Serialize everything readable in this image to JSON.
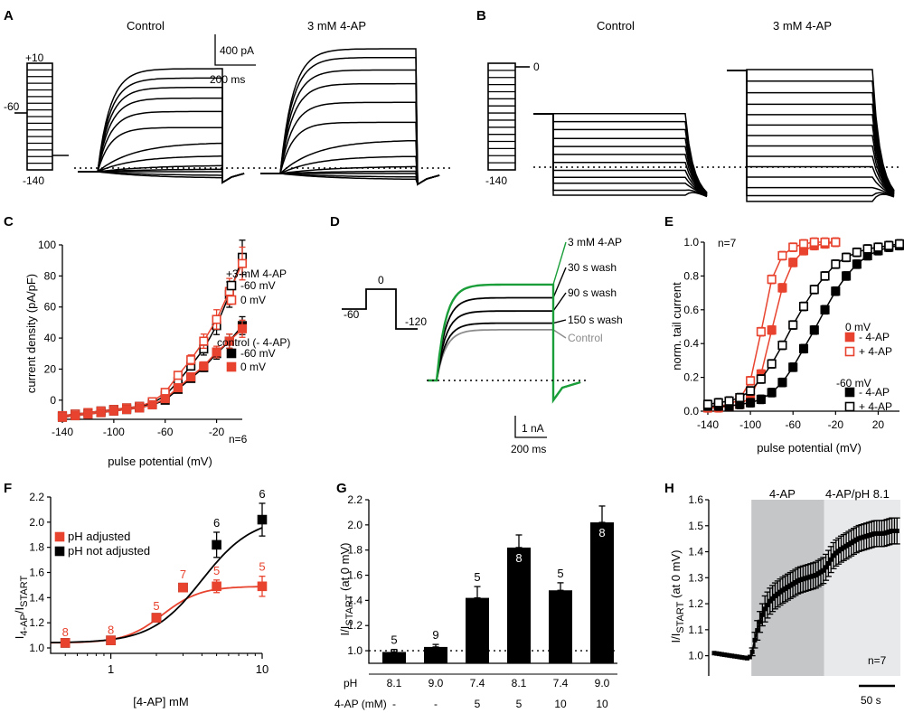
{
  "colors": {
    "black": "#000000",
    "red": "#e8432e",
    "green": "#1a9e3a",
    "gray": "#8c8c8c",
    "shade_dark": "#c4c6c8",
    "shade_light": "#e8e9ea"
  },
  "panel_a": {
    "label": "A",
    "control_title": "Control",
    "drug_title": "3 mM 4-AP",
    "protocol_labels": [
      "+10",
      "-60",
      "-140"
    ],
    "scale_current": "400 pA",
    "scale_time": "200 ms",
    "control_plateaus": [
      0.77,
      0.7,
      0.63,
      0.55,
      0.45,
      0.33,
      0.22,
      0.12,
      0.05,
      0.02,
      0.0,
      -0.03,
      -0.05
    ],
    "drug_plateaus": [
      1.0,
      0.93,
      0.83,
      0.72,
      0.57,
      0.41,
      0.27,
      0.14,
      0.06,
      0.02,
      0.0,
      -0.03,
      -0.05
    ]
  },
  "panel_b": {
    "label": "B",
    "control_title": "Control",
    "drug_title": "3 mM 4-AP",
    "protocol_labels": [
      "0",
      "-140"
    ],
    "control_levels": [
      0.72,
      0.64,
      0.56,
      0.47,
      0.39,
      0.31,
      0.23,
      0.15,
      0.08,
      0.02,
      -0.05,
      -0.1
    ],
    "drug_levels": [
      1.0,
      0.9,
      0.8,
      0.7,
      0.61,
      0.52,
      0.43,
      0.34,
      0.25,
      0.16,
      0.07,
      -0.02,
      -0.09,
      -0.14
    ]
  },
  "panel_d": {
    "label": "D",
    "protocol_labels": [
      "0",
      "-60",
      "-120"
    ],
    "scale_current": "1 nA",
    "scale_time": "200 ms",
    "traces": [
      {
        "name": "3 mM 4-AP",
        "level": 0.87,
        "color": "#1a9e3a"
      },
      {
        "name": "30 s wash",
        "level": 0.75,
        "color": "#000000"
      },
      {
        "name": "90 s wash",
        "level": 0.63,
        "color": "#000000"
      },
      {
        "name": "150 s wash",
        "level": 0.52,
        "color": "#000000"
      },
      {
        "name": "Control",
        "level": 0.46,
        "color": "#8c8c8c"
      }
    ]
  },
  "chart_data": [
    {
      "panel": "C",
      "type": "scatter",
      "xlabel": "pulse potential (mV)",
      "ylabel": "current density (pA/pF)",
      "xlim": [
        -140,
        0
      ],
      "ylim": [
        -10,
        100
      ],
      "xticks": [
        -140,
        -100,
        -60,
        -20
      ],
      "yticks": [
        0,
        20,
        40,
        60,
        80,
        100
      ],
      "n_label": "n=6",
      "legend_title_drug": "+3 mM 4-AP",
      "legend_title_ctrl": "control (- 4-AP)",
      "x": [
        -140,
        -130,
        -120,
        -110,
        -100,
        -90,
        -80,
        -70,
        -60,
        -50,
        -40,
        -30,
        -20,
        -10,
        0
      ],
      "series": [
        {
          "name": "-60 mV",
          "group": "4-AP",
          "color": "#000000",
          "filled": false,
          "values": [
            -10,
            -9,
            -8,
            -7,
            -6,
            -5,
            -4,
            -2,
            3,
            12,
            22,
            33,
            48,
            68,
            92
          ]
        },
        {
          "name": "0 mV",
          "group": "4-AP",
          "color": "#e8432e",
          "filled": false,
          "values": [
            -10,
            -9,
            -8,
            -7,
            -6,
            -5,
            -4,
            -1,
            5,
            16,
            26,
            38,
            52,
            70,
            88
          ]
        },
        {
          "name": "-60 mV",
          "group": "control",
          "color": "#000000",
          "filled": true,
          "values": [
            -11,
            -10,
            -9,
            -8,
            -7,
            -6,
            -5,
            -3,
            0,
            7,
            14,
            21,
            30,
            38,
            48
          ]
        },
        {
          "name": "0 mV",
          "group": "control",
          "color": "#e8432e",
          "filled": true,
          "values": [
            -11,
            -10,
            -9,
            -8,
            -7,
            -6,
            -5,
            -3,
            1,
            8,
            15,
            22,
            31,
            38,
            46
          ]
        }
      ]
    },
    {
      "panel": "E",
      "type": "line",
      "xlabel": "pulse potential (mV)",
      "ylabel": "norm. tail current",
      "xlim": [
        -140,
        40
      ],
      "ylim": [
        0,
        1
      ],
      "xticks": [
        -140,
        -100,
        -60,
        -20,
        20
      ],
      "yticks": [
        0.0,
        0.2,
        0.4,
        0.6,
        0.8,
        1.0
      ],
      "n_label": "n=7",
      "legend_title_0mv": "0 mV",
      "legend_title_60mv": "-60 mV",
      "x": [
        -140,
        -130,
        -120,
        -110,
        -100,
        -90,
        -80,
        -70,
        -60,
        -50,
        -40,
        -30,
        -20,
        -10,
        0,
        10,
        20,
        30,
        40
      ],
      "series": [
        {
          "name": "- 4-AP",
          "group": "0 mV",
          "color": "#e8432e",
          "filled": true,
          "values": [
            0.02,
            0.02,
            0.03,
            0.04,
            0.08,
            0.22,
            0.48,
            0.73,
            0.88,
            0.95,
            0.98,
            0.99,
            1.0,
            null,
            null,
            null,
            null,
            null,
            null
          ]
        },
        {
          "name": "+ 4-AP",
          "group": "0 mV",
          "color": "#e8432e",
          "filled": false,
          "values": [
            0.02,
            0.03,
            0.04,
            0.07,
            0.18,
            0.47,
            0.78,
            0.92,
            0.97,
            0.99,
            1.0,
            1.0,
            1.0,
            null,
            null,
            null,
            null,
            null,
            null
          ]
        },
        {
          "name": "- 4-AP",
          "group": "-60 mV",
          "color": "#000000",
          "filled": true,
          "values": [
            0.03,
            0.03,
            0.03,
            0.04,
            0.05,
            0.07,
            0.11,
            0.17,
            0.26,
            0.37,
            0.48,
            0.6,
            0.71,
            0.8,
            0.87,
            0.92,
            0.95,
            0.97,
            0.98
          ]
        },
        {
          "name": "+ 4-AP",
          "group": "-60 mV",
          "color": "#000000",
          "filled": false,
          "values": [
            0.04,
            0.05,
            0.06,
            0.08,
            0.12,
            0.19,
            0.28,
            0.39,
            0.51,
            0.62,
            0.72,
            0.8,
            0.87,
            0.91,
            0.94,
            0.96,
            0.97,
            0.98,
            0.99
          ]
        }
      ]
    },
    {
      "panel": "F",
      "type": "line",
      "xlabel": "[4-AP] mM",
      "ylabel_main": "I",
      "ylabel_sub1": "4-AP",
      "ylabel_mid": "/I",
      "ylabel_sub2": "START",
      "xscale": "log",
      "xlim": [
        0.4,
        10
      ],
      "ylim": [
        1.0,
        2.2
      ],
      "xticks": [
        1,
        10
      ],
      "yticks": [
        1.0,
        1.2,
        1.4,
        1.6,
        1.8,
        2.0,
        2.2
      ],
      "series": [
        {
          "name": "pH adjusted",
          "color": "#e8432e",
          "x": [
            0.5,
            1,
            2,
            3,
            5,
            10
          ],
          "values": [
            1.04,
            1.06,
            1.24,
            1.48,
            1.49,
            1.49
          ],
          "errors": [
            0.01,
            0.01,
            0.02,
            0.03,
            0.05,
            0.08
          ],
          "n": [
            "8",
            "8",
            "5",
            "7",
            "5",
            "5"
          ]
        },
        {
          "name": "pH not adjusted",
          "color": "#000000",
          "x": [
            0.5,
            1,
            2,
            3,
            5,
            10
          ],
          "values": [
            1.04,
            1.06,
            1.24,
            1.48,
            1.82,
            2.02
          ],
          "errors": [
            0.01,
            0.01,
            0.02,
            0.03,
            0.1,
            0.13
          ],
          "n": [
            "",
            "",
            "",
            "",
            "6",
            "6"
          ]
        }
      ]
    },
    {
      "panel": "G",
      "type": "bar",
      "ylabel_main": "I/I",
      "ylabel_sub": "START",
      "ylabel_tail": " (at 0 mV)",
      "ylim": [
        0.9,
        2.2
      ],
      "yticks": [
        1.0,
        1.2,
        1.4,
        1.6,
        1.8,
        2.0,
        2.2
      ],
      "row_label_ph": "pH",
      "row_label_conc": "4-AP (mM)",
      "ph": [
        "8.1",
        "9.0",
        "7.4",
        "8.1",
        "7.4",
        "9.0"
      ],
      "conc": [
        "-",
        "-",
        "5",
        "5",
        "10",
        "10"
      ],
      "values": [
        0.99,
        1.03,
        1.42,
        1.82,
        1.48,
        2.02
      ],
      "errors": [
        0.02,
        0.02,
        0.09,
        0.1,
        0.06,
        0.13
      ],
      "n": [
        "5",
        "9",
        "5",
        "8",
        "5",
        "8"
      ]
    },
    {
      "panel": "H",
      "type": "line",
      "ylabel_main": "I/I",
      "ylabel_sub": "START",
      "ylabel_tail": " (at 0 mV)",
      "ylim": [
        0.95,
        1.6
      ],
      "yticks": [
        1.0,
        1.1,
        1.2,
        1.3,
        1.4,
        1.5,
        1.6
      ],
      "period1_label": "4-AP",
      "period2_label": "4-AP/pH 8.1",
      "n_label": "n=7",
      "scale_time": "50 s",
      "t_end": 220,
      "period1": [
        44,
        130
      ],
      "period2": [
        130,
        220
      ],
      "t": [
        0,
        10,
        20,
        30,
        40,
        44,
        48,
        52,
        56,
        60,
        66,
        72,
        80,
        90,
        100,
        110,
        120,
        130,
        136,
        142,
        150,
        160,
        170,
        180,
        190,
        200,
        210,
        218
      ],
      "values": [
        1.01,
        1.005,
        1.0,
        0.995,
        0.99,
        1.0,
        1.06,
        1.11,
        1.15,
        1.18,
        1.21,
        1.23,
        1.25,
        1.27,
        1.29,
        1.3,
        1.31,
        1.33,
        1.36,
        1.39,
        1.41,
        1.43,
        1.45,
        1.46,
        1.47,
        1.47,
        1.48,
        1.48
      ],
      "errors": [
        0.005,
        0.005,
        0.005,
        0.005,
        0.005,
        0.01,
        0.03,
        0.04,
        0.04,
        0.05,
        0.05,
        0.05,
        0.05,
        0.05,
        0.05,
        0.05,
        0.05,
        0.05,
        0.05,
        0.05,
        0.05,
        0.05,
        0.05,
        0.05,
        0.05,
        0.05,
        0.05,
        0.05
      ]
    }
  ]
}
